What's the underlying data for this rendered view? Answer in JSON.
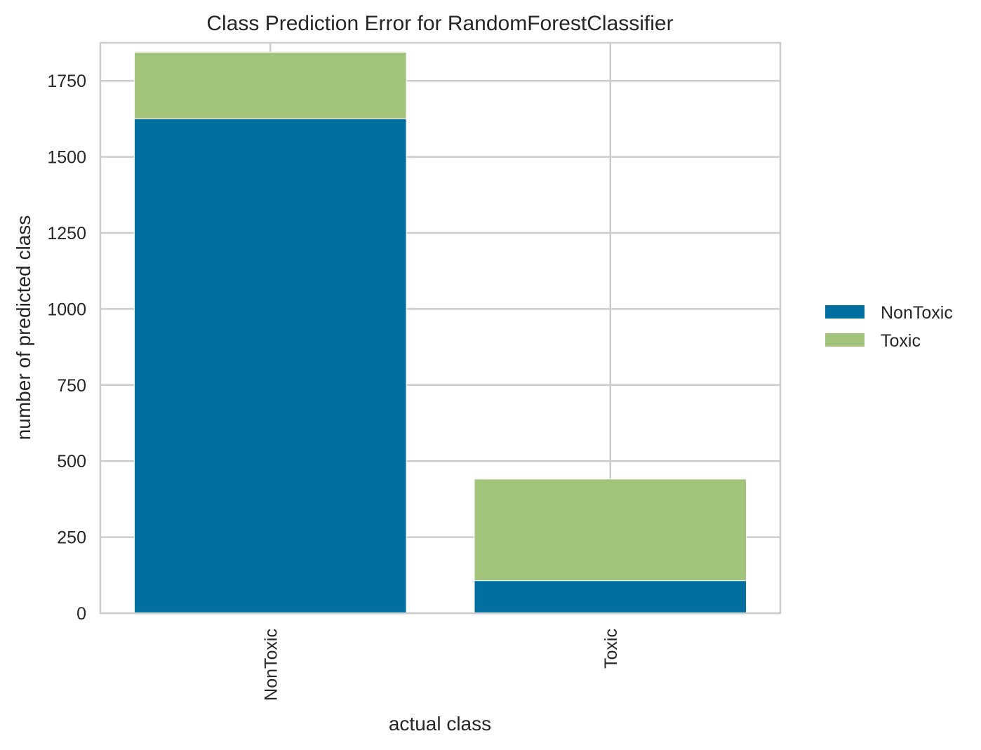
{
  "chart_data": {
    "type": "bar",
    "stacked": true,
    "title": "Class Prediction Error for RandomForestClassifier",
    "xlabel": "actual class",
    "ylabel": "number of predicted class",
    "categories": [
      "NonToxic",
      "Toxic"
    ],
    "series": [
      {
        "name": "NonToxic",
        "color": "#0170a1",
        "values": [
          1625,
          107
        ]
      },
      {
        "name": "Toxic",
        "color": "#a1c47a",
        "values": [
          219,
          334
        ]
      }
    ],
    "ylim": [
      0,
      1875
    ],
    "yticks": [
      0,
      250,
      500,
      750,
      1000,
      1250,
      1500,
      1750
    ],
    "grid": true,
    "legend_position": "right",
    "background": "#ffffff",
    "grid_color": "#cccccc"
  }
}
